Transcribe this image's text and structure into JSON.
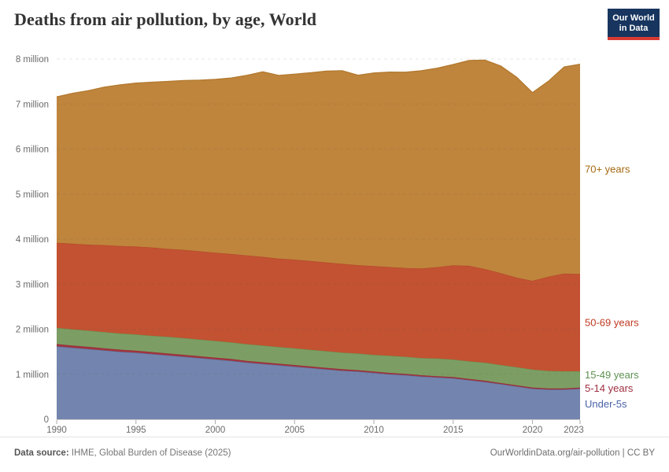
{
  "header": {
    "title": "Deaths from air pollution, by age, World",
    "logo_line1": "Our World",
    "logo_line2": "in Data"
  },
  "footer": {
    "source_label": "Data source:",
    "source_text": " IHME, Global Burden of Disease (2025)",
    "link_text": "OurWorldinData.org/air-pollution | CC BY"
  },
  "chart_data": {
    "type": "area",
    "stacked": true,
    "title": "Deaths from air pollution, by age, World",
    "xlabel": "",
    "ylabel": "",
    "ylim": [
      0,
      8
    ],
    "grid": "dashed-horizontal",
    "legend_position": "right-edge-labels",
    "x": [
      1990,
      1991,
      1992,
      1993,
      1994,
      1995,
      1996,
      1997,
      1998,
      1999,
      2000,
      2001,
      2002,
      2003,
      2004,
      2005,
      2006,
      2007,
      2008,
      2009,
      2010,
      2011,
      2012,
      2013,
      2014,
      2015,
      2016,
      2017,
      2018,
      2019,
      2020,
      2021,
      2022,
      2023
    ],
    "x_ticks": [
      {
        "year": 1990,
        "label": "1990",
        "nudge": 0
      },
      {
        "year": 1995,
        "label": "1995",
        "nudge": 0
      },
      {
        "year": 2000,
        "label": "2000",
        "nudge": 0
      },
      {
        "year": 2005,
        "label": "2005",
        "nudge": 0
      },
      {
        "year": 2010,
        "label": "2010",
        "nudge": 0
      },
      {
        "year": 2015,
        "label": "2015",
        "nudge": 0
      },
      {
        "year": 2020,
        "label": "2020",
        "nudge": 0
      },
      {
        "year": 2023,
        "label": "2023",
        "nudge": -8
      }
    ],
    "y_ticks": [
      {
        "v": 0,
        "label": "0"
      },
      {
        "v": 1,
        "label": "1 million"
      },
      {
        "v": 2,
        "label": "2 million"
      },
      {
        "v": 3,
        "label": "3 million"
      },
      {
        "v": 4,
        "label": "4 million"
      },
      {
        "v": 5,
        "label": "5 million"
      },
      {
        "v": 6,
        "label": "6 million"
      },
      {
        "v": 7,
        "label": "7 million"
      },
      {
        "v": 8,
        "label": "8 million"
      }
    ],
    "unit": "deaths (millions)",
    "series": [
      {
        "name": "Under-5s",
        "color": "#7385ae",
        "line_color": "#5a6f9e",
        "label_color": "#4a63a8",
        "values": [
          1.62,
          1.59,
          1.56,
          1.53,
          1.5,
          1.48,
          1.45,
          1.42,
          1.39,
          1.36,
          1.33,
          1.3,
          1.26,
          1.23,
          1.2,
          1.17,
          1.14,
          1.11,
          1.08,
          1.06,
          1.03,
          1.0,
          0.98,
          0.95,
          0.93,
          0.91,
          0.87,
          0.83,
          0.78,
          0.73,
          0.68,
          0.66,
          0.66,
          0.68
        ]
      },
      {
        "name": "5-14 years",
        "color": "#a1353f",
        "line_color": "#952c38",
        "label_color": "#9e2f3f",
        "values": [
          0.05,
          0.049,
          0.048,
          0.047,
          0.046,
          0.045,
          0.044,
          0.043,
          0.042,
          0.041,
          0.04,
          0.039,
          0.038,
          0.037,
          0.036,
          0.035,
          0.034,
          0.033,
          0.032,
          0.031,
          0.03,
          0.03,
          0.029,
          0.029,
          0.028,
          0.028,
          0.027,
          0.027,
          0.026,
          0.026,
          0.025,
          0.025,
          0.025,
          0.025
        ]
      },
      {
        "name": "15-49 years",
        "color": "#7c9e64",
        "line_color": "#6b9352",
        "label_color": "#5d9150",
        "values": [
          0.36,
          0.36,
          0.36,
          0.36,
          0.36,
          0.36,
          0.36,
          0.37,
          0.37,
          0.37,
          0.37,
          0.37,
          0.37,
          0.37,
          0.37,
          0.37,
          0.37,
          0.37,
          0.37,
          0.37,
          0.37,
          0.38,
          0.38,
          0.38,
          0.39,
          0.39,
          0.39,
          0.4,
          0.4,
          0.4,
          0.4,
          0.39,
          0.38,
          0.36
        ]
      },
      {
        "name": "50-69 years",
        "color": "#c25232",
        "line_color": "#b54828",
        "label_color": "#c03a21",
        "values": [
          1.89,
          1.9,
          1.91,
          1.93,
          1.94,
          1.95,
          1.96,
          1.95,
          1.96,
          1.96,
          1.96,
          1.96,
          1.97,
          1.97,
          1.96,
          1.97,
          1.97,
          1.97,
          1.97,
          1.96,
          1.97,
          1.97,
          1.97,
          1.99,
          2.03,
          2.09,
          2.12,
          2.08,
          2.04,
          1.99,
          1.97,
          2.09,
          2.17,
          2.16
        ]
      },
      {
        "name": "70+ years",
        "color": "#bf853d",
        "line_color": "#b1772c",
        "label_color": "#a56811",
        "values": [
          3.24,
          3.34,
          3.42,
          3.51,
          3.58,
          3.63,
          3.67,
          3.72,
          3.76,
          3.8,
          3.85,
          3.91,
          4.0,
          4.11,
          4.07,
          4.12,
          4.18,
          4.25,
          4.29,
          4.22,
          4.29,
          4.33,
          4.35,
          4.39,
          4.42,
          4.46,
          4.56,
          4.64,
          4.6,
          4.45,
          4.18,
          4.34,
          4.59,
          4.66
        ]
      }
    ]
  }
}
